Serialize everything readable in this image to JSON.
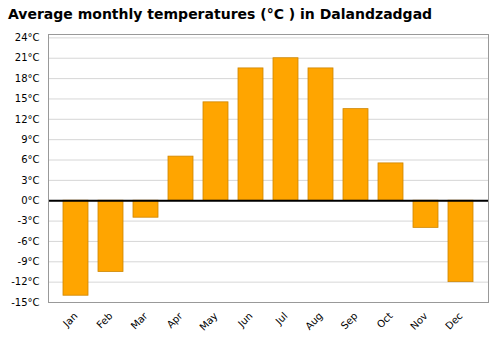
{
  "chart_data": {
    "type": "bar",
    "title": "Average monthly temperatures (°C ) in Dalandzadgad",
    "categories": [
      "Jan",
      "Feb",
      "Mar",
      "Apr",
      "May",
      "Jun",
      "Jul",
      "Aug",
      "Sep",
      "Oct",
      "Nov",
      "Dec"
    ],
    "values": [
      -14,
      -10.5,
      -2.5,
      6.5,
      14.5,
      19.5,
      21,
      19.5,
      13.5,
      5.5,
      -4,
      -12
    ],
    "color": "#FFA500",
    "ylim": [
      -15,
      24.5
    ],
    "yticks": [
      {
        "value": -15,
        "label": "-15°C"
      },
      {
        "value": -12,
        "label": "-12°C"
      },
      {
        "value": -9,
        "label": "-9°C"
      },
      {
        "value": -6,
        "label": "-6°C"
      },
      {
        "value": -3,
        "label": "-3°C"
      },
      {
        "value": 0,
        "label": "0°C"
      },
      {
        "value": 3,
        "label": "3°C"
      },
      {
        "value": 6,
        "label": "6°C"
      },
      {
        "value": 9,
        "label": "9°C"
      },
      {
        "value": 12,
        "label": "12°C"
      },
      {
        "value": 15,
        "label": "15°C"
      },
      {
        "value": 18,
        "label": "18°C"
      },
      {
        "value": 21,
        "label": "21°C"
      },
      {
        "value": 24,
        "label": "24°C"
      }
    ],
    "grid": true
  }
}
